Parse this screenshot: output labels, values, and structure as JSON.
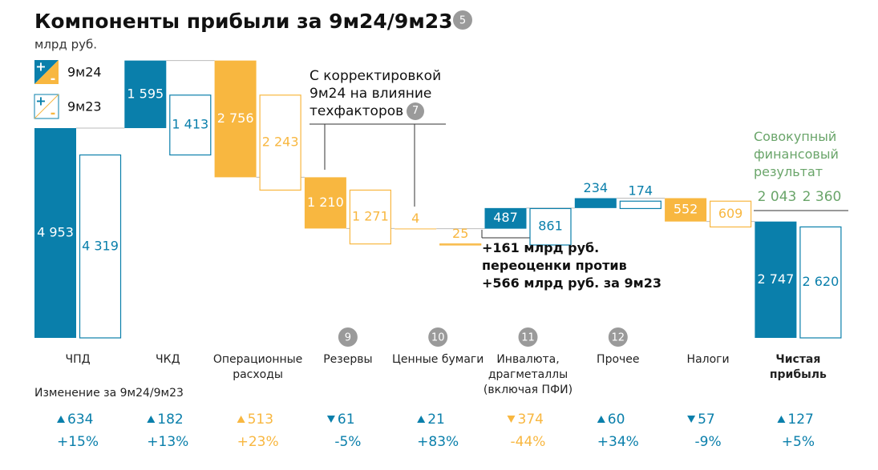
{
  "title": "Компоненты прибыли за 9м24/9м23",
  "title_note": 5,
  "subtitle": "млрд руб.",
  "chart_data": {
    "type": "waterfall",
    "categories": [
      "ЧПД",
      "ЧКД",
      "Операционные расходы",
      "Резервы",
      "Ценные бумаги",
      "Инвалюта, драгметаллы (включая ПФИ)",
      "Прочее",
      "Налоги",
      "Чистая прибыль"
    ],
    "category_notes": [
      null,
      null,
      null,
      9,
      10,
      11,
      12,
      null,
      null
    ],
    "directions": [
      "total",
      "up",
      "down",
      "down",
      "down",
      "up",
      "up",
      "down",
      "total"
    ],
    "bar_colors": [
      "#0a7fab",
      "#0a7fab",
      "#f8b740",
      "#f8b740",
      "#f8b740",
      "#0a7fab",
      "#0a7fab",
      "#f8b740",
      "#0a7fab"
    ],
    "series": [
      {
        "name": "9м24",
        "style": "filled",
        "values": [
          4953,
          1595,
          2756,
          1210,
          4,
          487,
          234,
          552,
          2747
        ],
        "value_labels": [
          "4 953",
          "1 595",
          "2 756",
          "1 210",
          "4",
          "487",
          "234",
          "552",
          "2 747"
        ]
      },
      {
        "name": "9м23",
        "style": "outline",
        "values": [
          4319,
          1413,
          2243,
          1271,
          25,
          861,
          174,
          609,
          2620
        ],
        "value_labels": [
          "4 319",
          "1 413",
          "2 243",
          "1 271",
          "25",
          "861",
          "174",
          "609",
          "2 620"
        ]
      }
    ],
    "change_caption": "Изменение за 9м24/9м23",
    "change": {
      "values": [
        634,
        182,
        513,
        61,
        21,
        374,
        60,
        57,
        127
      ],
      "directions": [
        "up",
        "up",
        "up",
        "down",
        "up",
        "down",
        "up",
        "down",
        "up"
      ],
      "pct_labels": [
        "+15%",
        "+13%",
        "+23%",
        "-5%",
        "+83%",
        "-44%",
        "+34%",
        "-9%",
        "+5%"
      ],
      "colors": [
        "#0a7fab",
        "#0a7fab",
        "#f8b740",
        "#0a7fab",
        "#0a7fab",
        "#f8b740",
        "#0a7fab",
        "#0a7fab",
        "#0a7fab"
      ]
    },
    "annotations": [
      {
        "lines": [
          "С корректировкой",
          "9м24 на влияние",
          "техфакторов"
        ],
        "note": 7
      },
      {
        "lines": [
          "+161 млрд руб.",
          "переоценки против",
          "+566 млрд руб. за 9м23"
        ]
      },
      {
        "lines": [
          "Совокупный",
          "финансовый",
          "результат"
        ],
        "values": [
          2043,
          2360
        ],
        "value_labels": [
          "2 043",
          "2 360"
        ],
        "color": "#6aa56a"
      }
    ]
  }
}
